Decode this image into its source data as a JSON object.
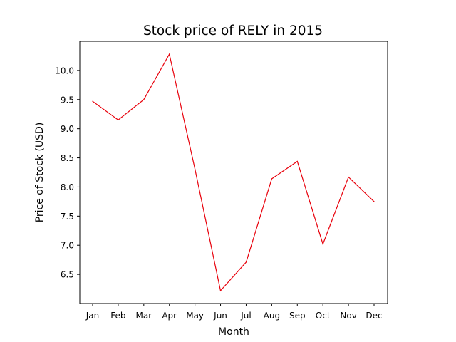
{
  "chart_data": {
    "type": "line",
    "title": "Stock price of RELY in 2015",
    "xlabel": "Month",
    "ylabel": "Price of Stock (USD)",
    "categories": [
      "Jan",
      "Feb",
      "Mar",
      "Apr",
      "May",
      "Jun",
      "Jul",
      "Aug",
      "Sep",
      "Oct",
      "Nov",
      "Dec"
    ],
    "series": [
      {
        "values": [
          9.47,
          9.15,
          9.5,
          10.28,
          8.31,
          6.22,
          6.71,
          8.14,
          8.44,
          7.02,
          8.17,
          7.75
        ],
        "color": "#e8000b"
      }
    ],
    "ylim": [
      6.0,
      10.5
    ],
    "yticks": [
      "6.5",
      "7.0",
      "7.5",
      "8.0",
      "8.5",
      "9.0",
      "9.5",
      "10.0"
    ],
    "grid": false,
    "legend": "none"
  }
}
